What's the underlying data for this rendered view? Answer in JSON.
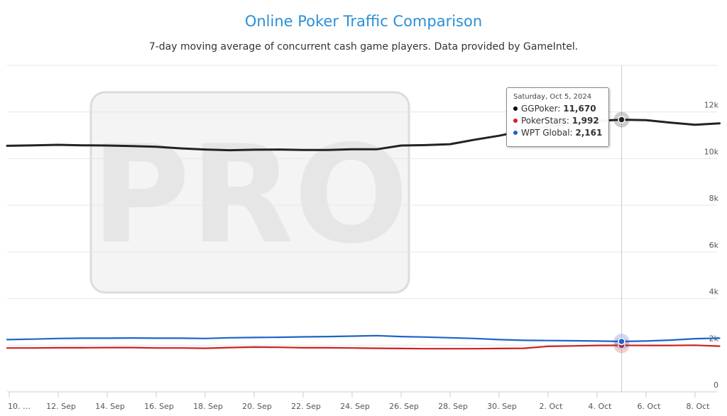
{
  "title": "Online Poker Traffic Comparison",
  "subtitle": "7-day moving average of concurrent cash game players. Data provided by GameIntel.",
  "watermark": "PRO",
  "tooltip": {
    "date": "Saturday, Oct 5, 2024",
    "rows": [
      {
        "name": "GGPoker",
        "value": "11,670",
        "color": "#000000"
      },
      {
        "name": "PokerStars",
        "value": "1,992",
        "color": "#d62020"
      },
      {
        "name": "WPT Global",
        "value": "2,161",
        "color": "#1e64c8"
      }
    ]
  },
  "chart_data": {
    "type": "line",
    "title": "Online Poker Traffic Comparison",
    "subtitle": "7-day moving average of concurrent cash game players. Data provided by GameIntel.",
    "x": [
      "10. Sep",
      "11. Sep",
      "12. Sep",
      "13. Sep",
      "14. Sep",
      "15. Sep",
      "16. Sep",
      "17. Sep",
      "18. Sep",
      "19. Sep",
      "20. Sep",
      "21. Sep",
      "22. Sep",
      "23. Sep",
      "24. Sep",
      "25. Sep",
      "26. Sep",
      "27. Sep",
      "28. Sep",
      "29. Sep",
      "30. Sep",
      "1. Oct",
      "2. Oct",
      "3. Oct",
      "4. Oct",
      "5. Oct",
      "6. Oct",
      "7. Oct",
      "8. Oct",
      "9. Oct"
    ],
    "x_tick_labels": [
      "10. …",
      "12. Sep",
      "14. Sep",
      "16. Sep",
      "18. Sep",
      "20. Sep",
      "22. Sep",
      "24. Sep",
      "26. Sep",
      "28. Sep",
      "30. Sep",
      "2. Oct",
      "4. Oct",
      "6. Oct",
      "8. Oct"
    ],
    "y_ticks": [
      0,
      2000,
      4000,
      6000,
      8000,
      10000,
      12000
    ],
    "y_tick_labels": [
      "0",
      "2k",
      "4k",
      "6k",
      "8k",
      "10k",
      "12k"
    ],
    "ylim": [
      0,
      14000
    ],
    "grid": true,
    "legend": "none",
    "series": [
      {
        "name": "GGPoker",
        "color": "#222222",
        "values": [
          10550,
          10570,
          10590,
          10570,
          10560,
          10540,
          10510,
          10440,
          10390,
          10360,
          10380,
          10390,
          10370,
          10370,
          10400,
          10400,
          10560,
          10580,
          10620,
          10810,
          10980,
          11200,
          11380,
          11490,
          11620,
          11670,
          11650,
          11540,
          11450,
          11510
        ]
      },
      {
        "name": "PokerStars",
        "color": "#cc2222",
        "values": [
          1880,
          1880,
          1890,
          1890,
          1900,
          1900,
          1880,
          1880,
          1870,
          1900,
          1920,
          1910,
          1890,
          1890,
          1880,
          1870,
          1860,
          1850,
          1850,
          1850,
          1860,
          1870,
          1950,
          1970,
          1990,
          1992,
          1990,
          1990,
          2000,
          1960
        ]
      },
      {
        "name": "WPT Global",
        "color": "#1e64c8",
        "values": [
          2240,
          2260,
          2290,
          2300,
          2300,
          2310,
          2300,
          2300,
          2290,
          2320,
          2330,
          2340,
          2360,
          2370,
          2390,
          2410,
          2370,
          2350,
          2320,
          2290,
          2240,
          2210,
          2200,
          2190,
          2180,
          2161,
          2180,
          2220,
          2280,
          2300
        ]
      }
    ],
    "highlight_index": 25
  }
}
